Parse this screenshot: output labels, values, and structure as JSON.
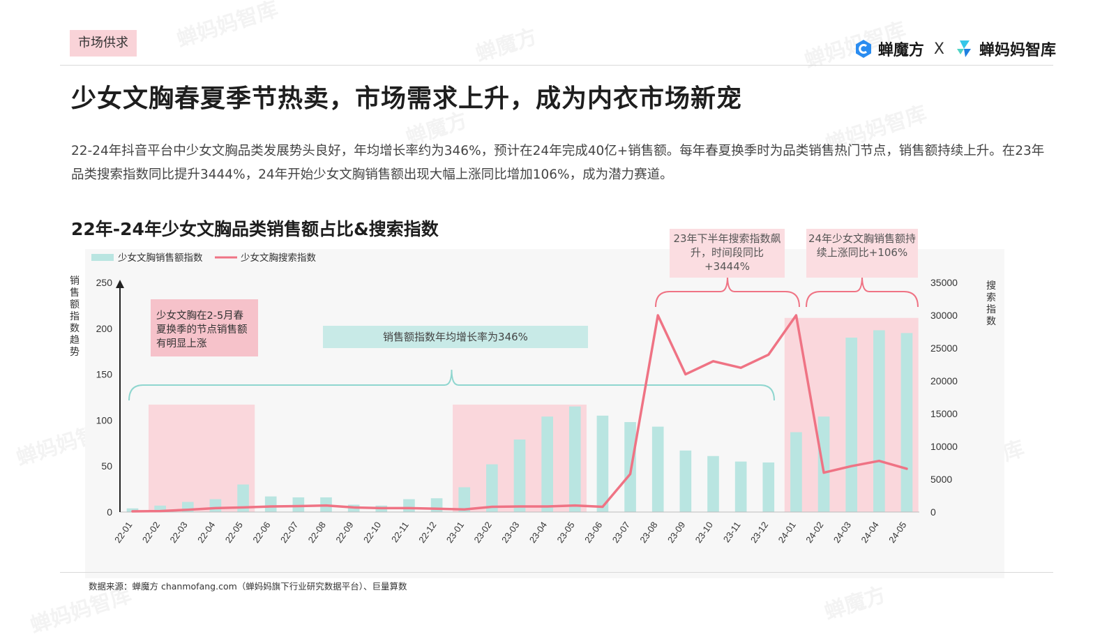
{
  "tag": "市场供求",
  "brand": {
    "left": "蝉魔方",
    "sep": "X",
    "right": "蝉妈妈智库"
  },
  "title": "少女文胸春夏季节热卖，市场需求上升，成为内衣市场新宠",
  "description": "22-24年抖音平台中少女文胸品类发展势头良好，年均增长率约为346%，预计在24年完成40亿+销售额。每年春夏换季时为品类销售热门节点，销售额持续上升。在23年品类搜索指数同比提升3444%，24年开始少女文胸销售额出现大幅上涨同比增加106%，成为潜力赛道。",
  "chart_title": "22年-24年少女文胸品类销售额占比&搜索指数",
  "notes": {
    "search_2023": "23年下半年搜索指数飙升，时间段同比+3444%",
    "sales_2024": "24年少女文胸销售额持续上涨同比+106%",
    "spring": "少女文胸在2-5月春夏换季的节点销售额有明显上涨",
    "growth": "销售额指数年均增长率为346%"
  },
  "source": "数据来源：蝉魔方 chanmofang.com（蝉妈妈旗下行业研究数据平台）、巨量算数",
  "watermark": [
    "蝉魔方",
    "蝉妈妈智库"
  ],
  "colors": {
    "bar": "#b9e5e1",
    "line": "#ef7384",
    "highlight": "#f9d3d8",
    "bracket_teal": "#8fd6cf",
    "bracket_pink": "#ef7384"
  },
  "chart_data": {
    "type": "bar",
    "categories": [
      "22-01",
      "22-02",
      "22-03",
      "22-04",
      "22-05",
      "22-06",
      "22-07",
      "22-08",
      "22-09",
      "22-10",
      "22-11",
      "22-12",
      "23-01",
      "23-02",
      "23-03",
      "23-04",
      "23-05",
      "23-06",
      "23-07",
      "23-08",
      "23-09",
      "23-10",
      "23-11",
      "23-12",
      "24-01",
      "24-02",
      "24-03",
      "24-04",
      "24-05"
    ],
    "series": [
      {
        "name": "少女文胸销售额指数",
        "type": "bar",
        "axis": "left",
        "values": [
          4,
          7,
          11,
          14,
          30,
          17,
          16,
          16,
          8,
          7,
          14,
          15,
          27,
          52,
          79,
          104,
          115,
          105,
          98,
          93,
          67,
          61,
          55,
          54,
          87,
          104,
          190,
          198,
          195
        ]
      },
      {
        "name": "少女文胸搜索指数",
        "type": "line",
        "axis": "right",
        "values": [
          100,
          150,
          350,
          600,
          700,
          850,
          900,
          1000,
          700,
          600,
          600,
          500,
          400,
          800,
          850,
          850,
          1000,
          800,
          5800,
          30000,
          21000,
          23000,
          22000,
          24000,
          30000,
          6000,
          7000,
          7800,
          6600
        ]
      }
    ],
    "y_left": {
      "label": "销售额指数趋势",
      "ticks": [
        0,
        50,
        100,
        150,
        200,
        250
      ],
      "range": [
        0,
        250
      ]
    },
    "y_right": {
      "label": "搜索指数",
      "ticks": [
        0,
        5000,
        10000,
        15000,
        20000,
        25000,
        30000,
        35000
      ],
      "range": [
        0,
        35000
      ]
    },
    "legend_position": "top-left",
    "grid": false
  }
}
